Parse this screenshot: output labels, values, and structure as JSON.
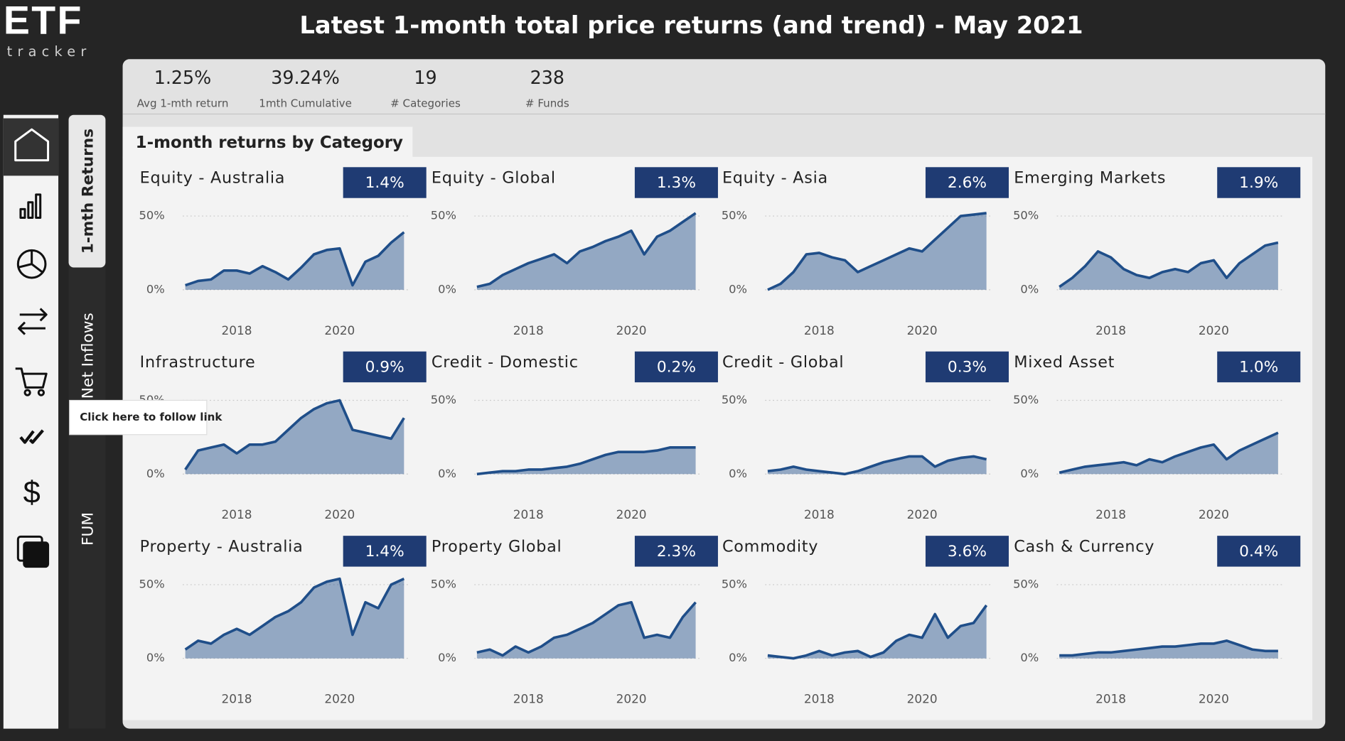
{
  "logo": {
    "mark": "ETF",
    "sub": "tracker"
  },
  "header": {
    "title": "Latest 1-month total price returns (and trend) - May 2021"
  },
  "kpis": [
    {
      "value": "1.25%",
      "label": "Avg 1-mth return"
    },
    {
      "value": "39.24%",
      "label": "1mth Cumulative"
    },
    {
      "value": "19",
      "label": "# Categories"
    },
    {
      "value": "238",
      "label": "# Funds"
    }
  ],
  "nav": {
    "tabs": [
      "1-mth Returns",
      "Net Inflows",
      "FUM"
    ]
  },
  "tooltip": "Click here to follow link",
  "section_title": "1-month returns by Category",
  "chart_data": [
    {
      "type": "area",
      "title": "Equity - Australia",
      "badge": "1.4%",
      "color": "#1f4e89",
      "x": [
        2017,
        2017.25,
        2017.5,
        2017.75,
        2018,
        2018.25,
        2018.5,
        2018.75,
        2019,
        2019.25,
        2019.5,
        2019.75,
        2020,
        2020.25,
        2020.5,
        2020.75,
        2021,
        2021.25
      ],
      "values": [
        3,
        6,
        7,
        13,
        13,
        11,
        16,
        12,
        7,
        15,
        24,
        27,
        28,
        3,
        19,
        23,
        32,
        39
      ],
      "xlim": [
        2016.95,
        2021.35
      ],
      "ylim": [
        0,
        55
      ],
      "xticks": [
        2018,
        2020
      ],
      "yticks": [
        {
          "value": 0,
          "label": "0%"
        },
        {
          "value": 50,
          "label": "50%"
        }
      ]
    },
    {
      "type": "area",
      "title": "Equity - Global",
      "badge": "1.3%",
      "color": "#1f4e89",
      "x": [
        2017,
        2017.25,
        2017.5,
        2017.75,
        2018,
        2018.25,
        2018.5,
        2018.75,
        2019,
        2019.25,
        2019.5,
        2019.75,
        2020,
        2020.25,
        2020.5,
        2020.75,
        2021,
        2021.25
      ],
      "values": [
        2,
        4,
        10,
        14,
        18,
        21,
        24,
        18,
        26,
        29,
        33,
        36,
        40,
        24,
        36,
        40,
        46,
        52
      ],
      "xlim": [
        2016.95,
        2021.35
      ],
      "ylim": [
        0,
        55
      ],
      "xticks": [
        2018,
        2020
      ],
      "yticks": [
        {
          "value": 0,
          "label": "0%"
        },
        {
          "value": 50,
          "label": "50%"
        }
      ]
    },
    {
      "type": "area",
      "title": "Equity - Asia",
      "badge": "2.6%",
      "color": "#1f4e89",
      "x": [
        2017,
        2017.25,
        2017.5,
        2017.75,
        2018,
        2018.25,
        2018.5,
        2018.75,
        2019,
        2019.25,
        2019.5,
        2019.75,
        2020,
        2020.25,
        2020.5,
        2020.75,
        2021,
        2021.25
      ],
      "values": [
        0,
        4,
        12,
        24,
        25,
        22,
        20,
        12,
        16,
        20,
        24,
        28,
        26,
        34,
        42,
        50,
        51,
        52
      ],
      "xlim": [
        2016.95,
        2021.35
      ],
      "ylim": [
        0,
        55
      ],
      "xticks": [
        2018,
        2020
      ],
      "yticks": [
        {
          "value": 0,
          "label": "0%"
        },
        {
          "value": 50,
          "label": "50%"
        }
      ]
    },
    {
      "type": "area",
      "title": "Emerging Markets",
      "badge": "1.9%",
      "color": "#1f4e89",
      "x": [
        2017,
        2017.25,
        2017.5,
        2017.75,
        2018,
        2018.25,
        2018.5,
        2018.75,
        2019,
        2019.25,
        2019.5,
        2019.75,
        2020,
        2020.25,
        2020.5,
        2020.75,
        2021,
        2021.25
      ],
      "values": [
        2,
        8,
        16,
        26,
        22,
        14,
        10,
        8,
        12,
        14,
        12,
        18,
        20,
        8,
        18,
        24,
        30,
        32
      ],
      "xlim": [
        2016.95,
        2021.35
      ],
      "ylim": [
        0,
        55
      ],
      "xticks": [
        2018,
        2020
      ],
      "yticks": [
        {
          "value": 0,
          "label": "0%"
        },
        {
          "value": 50,
          "label": "50%"
        }
      ]
    },
    {
      "type": "area",
      "title": "Infrastructure",
      "badge": "0.9%",
      "color": "#1f4e89",
      "x": [
        2017,
        2017.25,
        2017.5,
        2017.75,
        2018,
        2018.25,
        2018.5,
        2018.75,
        2019,
        2019.25,
        2019.5,
        2019.75,
        2020,
        2020.25,
        2020.5,
        2020.75,
        2021,
        2021.25
      ],
      "values": [
        3,
        16,
        18,
        20,
        14,
        20,
        20,
        22,
        30,
        38,
        44,
        48,
        50,
        30,
        28,
        26,
        24,
        38
      ],
      "xlim": [
        2016.95,
        2021.35
      ],
      "ylim": [
        0,
        55
      ],
      "xticks": [
        2018,
        2020
      ],
      "yticks": [
        {
          "value": 0,
          "label": "0%"
        },
        {
          "value": 50,
          "label": "50%"
        }
      ]
    },
    {
      "type": "area",
      "title": "Credit - Domestic",
      "badge": "0.2%",
      "color": "#1f4e89",
      "x": [
        2017,
        2017.25,
        2017.5,
        2017.75,
        2018,
        2018.25,
        2018.5,
        2018.75,
        2019,
        2019.25,
        2019.5,
        2019.75,
        2020,
        2020.25,
        2020.5,
        2020.75,
        2021,
        2021.25
      ],
      "values": [
        0,
        1,
        2,
        2,
        3,
        3,
        4,
        5,
        7,
        10,
        13,
        15,
        15,
        15,
        16,
        18,
        18,
        18
      ],
      "xlim": [
        2016.95,
        2021.35
      ],
      "ylim": [
        0,
        55
      ],
      "xticks": [
        2018,
        2020
      ],
      "yticks": [
        {
          "value": 0,
          "label": "0%"
        },
        {
          "value": 50,
          "label": "50%"
        }
      ]
    },
    {
      "type": "area",
      "title": "Credit - Global",
      "badge": "0.3%",
      "color": "#1f4e89",
      "x": [
        2017,
        2017.25,
        2017.5,
        2017.75,
        2018,
        2018.25,
        2018.5,
        2018.75,
        2019,
        2019.25,
        2019.5,
        2019.75,
        2020,
        2020.25,
        2020.5,
        2020.75,
        2021,
        2021.25
      ],
      "values": [
        2,
        3,
        5,
        3,
        2,
        1,
        0,
        2,
        5,
        8,
        10,
        12,
        12,
        5,
        9,
        11,
        12,
        10
      ],
      "xlim": [
        2016.95,
        2021.35
      ],
      "ylim": [
        0,
        55
      ],
      "xticks": [
        2018,
        2020
      ],
      "yticks": [
        {
          "value": 0,
          "label": "0%"
        },
        {
          "value": 50,
          "label": "50%"
        }
      ]
    },
    {
      "type": "area",
      "title": "Mixed Asset",
      "badge": "1.0%",
      "color": "#1f4e89",
      "x": [
        2017,
        2017.25,
        2017.5,
        2017.75,
        2018,
        2018.25,
        2018.5,
        2018.75,
        2019,
        2019.25,
        2019.5,
        2019.75,
        2020,
        2020.25,
        2020.5,
        2020.75,
        2021,
        2021.25
      ],
      "values": [
        1,
        3,
        5,
        6,
        7,
        8,
        6,
        10,
        8,
        12,
        15,
        18,
        20,
        10,
        16,
        20,
        24,
        28
      ],
      "xlim": [
        2016.95,
        2021.35
      ],
      "ylim": [
        0,
        55
      ],
      "xticks": [
        2018,
        2020
      ],
      "yticks": [
        {
          "value": 0,
          "label": "0%"
        },
        {
          "value": 50,
          "label": "50%"
        }
      ]
    },
    {
      "type": "area",
      "title": "Property - Australia",
      "badge": "1.4%",
      "color": "#1f4e89",
      "x": [
        2017,
        2017.25,
        2017.5,
        2017.75,
        2018,
        2018.25,
        2018.5,
        2018.75,
        2019,
        2019.25,
        2019.5,
        2019.75,
        2020,
        2020.25,
        2020.5,
        2020.75,
        2021,
        2021.25
      ],
      "values": [
        6,
        12,
        10,
        16,
        20,
        16,
        22,
        28,
        32,
        38,
        48,
        52,
        54,
        16,
        38,
        34,
        50,
        54
      ],
      "xlim": [
        2016.95,
        2021.35
      ],
      "ylim": [
        0,
        55
      ],
      "xticks": [
        2018,
        2020
      ],
      "yticks": [
        {
          "value": 0,
          "label": "0%"
        },
        {
          "value": 50,
          "label": "50%"
        }
      ]
    },
    {
      "type": "area",
      "title": "Property Global",
      "badge": "2.3%",
      "color": "#1f4e89",
      "x": [
        2017,
        2017.25,
        2017.5,
        2017.75,
        2018,
        2018.25,
        2018.5,
        2018.75,
        2019,
        2019.25,
        2019.5,
        2019.75,
        2020,
        2020.25,
        2020.5,
        2020.75,
        2021,
        2021.25
      ],
      "values": [
        4,
        6,
        2,
        8,
        4,
        8,
        14,
        16,
        20,
        24,
        30,
        36,
        38,
        14,
        16,
        14,
        28,
        38
      ],
      "xlim": [
        2016.95,
        2021.35
      ],
      "ylim": [
        0,
        55
      ],
      "xticks": [
        2018,
        2020
      ],
      "yticks": [
        {
          "value": 0,
          "label": "0%"
        },
        {
          "value": 50,
          "label": "50%"
        }
      ]
    },
    {
      "type": "area",
      "title": "Commodity",
      "badge": "3.6%",
      "color": "#1f4e89",
      "x": [
        2017,
        2017.25,
        2017.5,
        2017.75,
        2018,
        2018.25,
        2018.5,
        2018.75,
        2019,
        2019.25,
        2019.5,
        2019.75,
        2020,
        2020.25,
        2020.5,
        2020.75,
        2021,
        2021.25
      ],
      "values": [
        2,
        1,
        0,
        2,
        5,
        2,
        4,
        5,
        1,
        4,
        12,
        16,
        14,
        30,
        14,
        22,
        24,
        36
      ],
      "xlim": [
        2016.95,
        2021.35
      ],
      "ylim": [
        0,
        55
      ],
      "xticks": [
        2018,
        2020
      ],
      "yticks": [
        {
          "value": 0,
          "label": "0%"
        },
        {
          "value": 50,
          "label": "50%"
        }
      ]
    },
    {
      "type": "area",
      "title": "Cash & Currency",
      "badge": "0.4%",
      "color": "#1f4e89",
      "x": [
        2017,
        2017.25,
        2017.5,
        2017.75,
        2018,
        2018.25,
        2018.5,
        2018.75,
        2019,
        2019.25,
        2019.5,
        2019.75,
        2020,
        2020.25,
        2020.5,
        2020.75,
        2021,
        2021.25
      ],
      "values": [
        2,
        2,
        3,
        4,
        4,
        5,
        6,
        7,
        8,
        8,
        9,
        10,
        10,
        12,
        9,
        6,
        5,
        5
      ],
      "xlim": [
        2016.95,
        2021.35
      ],
      "ylim": [
        0,
        55
      ],
      "xticks": [
        2018,
        2020
      ],
      "yticks": [
        {
          "value": 0,
          "label": "0%"
        },
        {
          "value": 50,
          "label": "50%"
        }
      ]
    }
  ]
}
